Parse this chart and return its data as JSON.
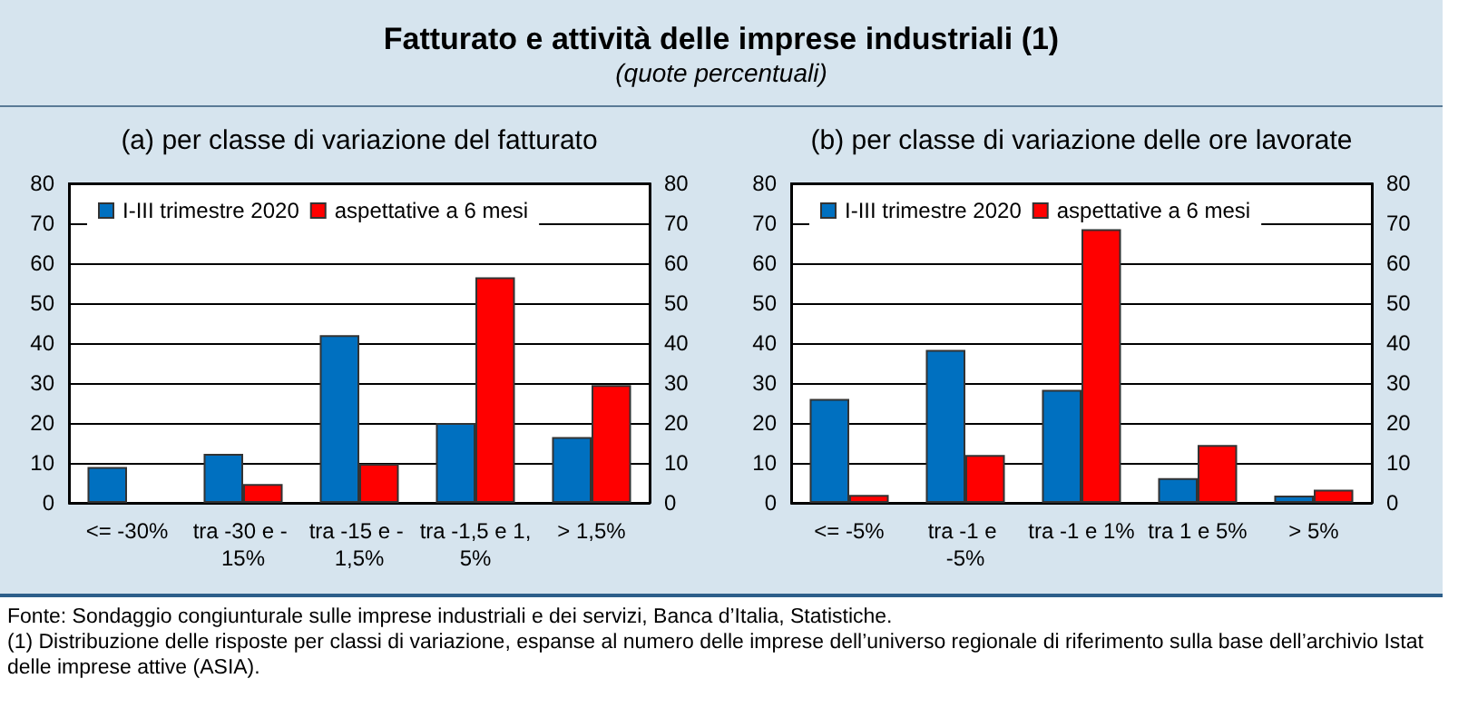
{
  "chart_data": [
    {
      "type": "other",
      "title": "Fatturato e attività delle imprese industriali (1)",
      "subtitle": "(quote percentuali)"
    },
    {
      "type": "bar",
      "title": "(a) per classe di variazione del fatturato",
      "categories": [
        "<= -30%",
        "tra -30 e - 15%",
        "tra -15 e - 1,5%",
        "tra -1,5 e 1,5%",
        "> 1,5%"
      ],
      "series": [
        {
          "name": "I-III trimestre 2020",
          "color": "#0070c0",
          "values": [
            9,
            12.3,
            42,
            20,
            16.5
          ]
        },
        {
          "name": "aspettative a 6 mesi",
          "color": "#ff0000",
          "values": [
            null,
            4.7,
            9.8,
            56.5,
            29.5
          ]
        }
      ],
      "ylim": [
        0,
        80
      ],
      "yticks": [
        0,
        10,
        20,
        30,
        40,
        50,
        60,
        70,
        80
      ],
      "y2lim": [
        0,
        80
      ],
      "y2ticks": [
        0,
        10,
        20,
        30,
        40,
        50,
        60,
        70,
        80
      ],
      "grid": "y",
      "legend": "top left"
    },
    {
      "type": "bar",
      "title": "(b) per classe di variazione delle ore lavorate",
      "categories": [
        "<= -5%",
        "tra -1 e -5%",
        "tra -1 e 1%",
        "tra 1 e 5%",
        "> 5%"
      ],
      "series": [
        {
          "name": "I-III trimestre 2020",
          "color": "#0070c0",
          "values": [
            26,
            38.3,
            28.3,
            6.2,
            1.8
          ]
        },
        {
          "name": "aspettative a 6 mesi",
          "color": "#ff0000",
          "values": [
            2,
            12,
            68.5,
            14.5,
            3.3
          ]
        }
      ],
      "ylim": [
        0,
        80
      ],
      "yticks": [
        0,
        10,
        20,
        30,
        40,
        50,
        60,
        70,
        80
      ],
      "y2lim": [
        0,
        80
      ],
      "y2ticks": [
        0,
        10,
        20,
        30,
        40,
        50,
        60,
        70,
        80
      ],
      "grid": "y",
      "legend": "top left"
    },
    {
      "type": "other",
      "annotations": [
        "Fonte: Sondaggio congiunturale sulle imprese industriali e dei servizi, Banca d’Italia, Statistiche.",
        "(1) Distribuzione delle risposte per classi di variazione, espanse al numero delle imprese dell’universo regionale di riferimento sulla base dell’archivio Istat delle imprese attive (ASIA)."
      ]
    }
  ]
}
